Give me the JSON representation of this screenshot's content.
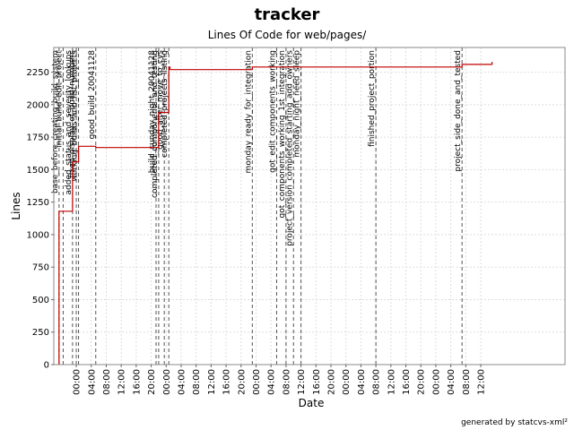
{
  "chart_data": {
    "type": "line",
    "title": "tracker",
    "subtitle": "Lines Of Code for web/pages/",
    "xlabel": "Date",
    "ylabel": "Lines",
    "footer": "generated by statcvs-xml²",
    "xlim": [
      -6,
      130.5
    ],
    "ylim": [
      0,
      2440
    ],
    "yticks": [
      0,
      250,
      500,
      750,
      1000,
      1250,
      1500,
      1750,
      2000,
      2250
    ],
    "xticks": [
      {
        "h": 0,
        "label": "00:00"
      },
      {
        "h": 4,
        "label": "04:00"
      },
      {
        "h": 8,
        "label": "08:00"
      },
      {
        "h": 12,
        "label": "12:00"
      },
      {
        "h": 16,
        "label": "16:00"
      },
      {
        "h": 20,
        "label": "20:00"
      },
      {
        "h": 24,
        "label": "00:00"
      },
      {
        "h": 28,
        "label": "04:00"
      },
      {
        "h": 32,
        "label": "08:00"
      },
      {
        "h": 36,
        "label": "12:00"
      },
      {
        "h": 40,
        "label": "16:00"
      },
      {
        "h": 44,
        "label": "20:00"
      },
      {
        "h": 48,
        "label": "00:00"
      },
      {
        "h": 52,
        "label": "04:00"
      },
      {
        "h": 56,
        "label": "08:00"
      },
      {
        "h": 60,
        "label": "12:00"
      },
      {
        "h": 64,
        "label": "16:00"
      },
      {
        "h": 68,
        "label": "20:00"
      },
      {
        "h": 72,
        "label": "00:00"
      },
      {
        "h": 76,
        "label": "04:00"
      },
      {
        "h": 80,
        "label": "08:00"
      },
      {
        "h": 84,
        "label": "12:00"
      },
      {
        "h": 88,
        "label": "16:00"
      },
      {
        "h": 92,
        "label": "20:00"
      },
      {
        "h": 96,
        "label": "00:00"
      },
      {
        "h": 100,
        "label": "04:00"
      },
      {
        "h": 104,
        "label": "08:00"
      },
      {
        "h": 108,
        "label": "12:00"
      }
    ],
    "grid": true,
    "series": [
      {
        "name": "",
        "color": "#c00000",
        "points": [
          [
            -4.6,
            0
          ],
          [
            -4.6,
            1180
          ],
          [
            -1.0,
            1180
          ],
          [
            -1.0,
            1560
          ],
          [
            0.6,
            1560
          ],
          [
            0.6,
            1680
          ],
          [
            5.2,
            1680
          ],
          [
            5.2,
            1670
          ],
          [
            22.0,
            1670
          ],
          [
            22.0,
            1940
          ],
          [
            24.7,
            1940
          ],
          [
            24.7,
            2290
          ],
          [
            25.0,
            2290
          ],
          [
            25.0,
            2270
          ],
          [
            47.0,
            2270
          ],
          [
            47.0,
            2290
          ],
          [
            103.0,
            2290
          ],
          [
            103.0,
            2310
          ],
          [
            111.0,
            2310
          ],
          [
            111.0,
            2330
          ]
        ]
      }
    ],
    "tags": [
      {
        "h": -4.6,
        "label": "base_before_creating_build_system"
      },
      {
        "h": -3.5,
        "label": "initial_build_edit_project"
      },
      {
        "h": -1.0,
        "label": "added_status_and_severity_lookups"
      },
      {
        "h": 0.0,
        "label": "fixed_display_of_build_numbers"
      },
      {
        "h": 0.6,
        "label": "working_builds_and_list_projects"
      },
      {
        "h": 5.2,
        "label": "good_build_20041128"
      },
      {
        "h": 21.3,
        "label": "build_sunday_night_20041128"
      },
      {
        "h": 22.0,
        "label": "completed_components_and_testing"
      },
      {
        "h": 23.5,
        "label": "good_after_move_to_cvs"
      },
      {
        "h": 24.7,
        "label": "completed_projects_listing"
      },
      {
        "h": 47.0,
        "label": "monday_ready_for_integration"
      },
      {
        "h": 53.5,
        "label": "got_edit_components_working"
      },
      {
        "h": 56.0,
        "label": "got_components_working_1st_integration"
      },
      {
        "h": 58.0,
        "label": "project_version_completed_starting_add_owners"
      },
      {
        "h": 60.0,
        "label": "monday_night_need_sleep"
      },
      {
        "h": 80.0,
        "label": "finished_project_portion"
      },
      {
        "h": 103.0,
        "label": "project_side_done_and_tested"
      }
    ]
  }
}
